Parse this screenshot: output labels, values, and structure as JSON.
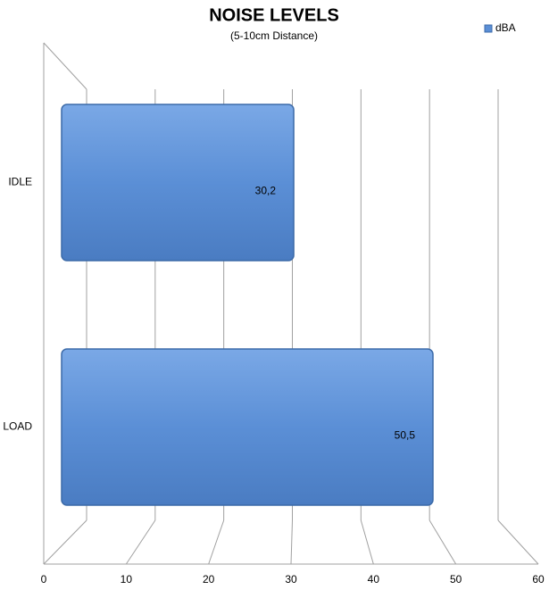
{
  "chart_data": {
    "type": "bar",
    "orientation": "horizontal",
    "title": "NOISE LEVELS",
    "subtitle": "(5-10cm Distance)",
    "categories": [
      "IDLE",
      "LOAD"
    ],
    "series": [
      {
        "name": "dBA",
        "color": "#5b8fd6",
        "values": [
          30.2,
          50.5
        ],
        "value_labels": [
          "30,2",
          "50,5"
        ]
      }
    ],
    "xlim": [
      0,
      60
    ],
    "xticks": [
      0,
      10,
      20,
      30,
      40,
      50,
      60
    ],
    "grid": true,
    "legend": "top-right"
  }
}
